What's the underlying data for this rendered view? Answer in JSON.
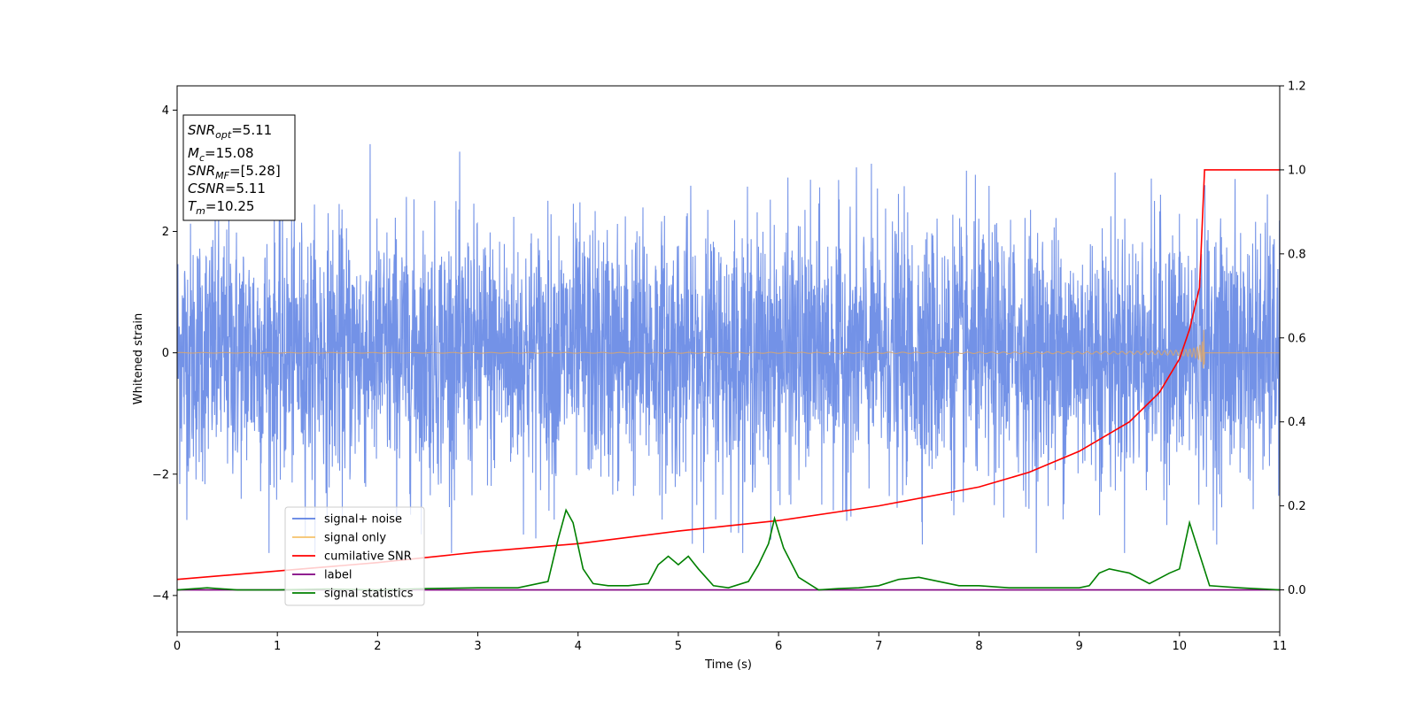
{
  "chart_data": {
    "type": "line",
    "xlabel": "Time (s)",
    "ylabel": "Whitened strain",
    "xlim": [
      0,
      11
    ],
    "ylim_left": [
      -4.6,
      4.4
    ],
    "ylim_right": [
      -0.1,
      1.2
    ],
    "xticks": [
      0,
      1,
      2,
      3,
      4,
      5,
      6,
      7,
      8,
      9,
      10,
      11
    ],
    "yticks_left": [
      -4,
      -2,
      0,
      2,
      4
    ],
    "yticks_right": [
      0.0,
      0.2,
      0.4,
      0.6,
      0.8,
      1.0,
      1.2
    ],
    "ytick_labels_right": [
      "0.0",
      "0.2",
      "0.4",
      "0.6",
      "0.8",
      "1.0",
      "1.2"
    ],
    "annotations": [
      {
        "base": "SNR",
        "sub": "opt",
        "value": "=5.11"
      },
      {
        "base": "M",
        "sub": "c",
        "value": "=15.08"
      },
      {
        "base": "SNR",
        "sub": "MF",
        "value": "=[5.28]"
      },
      {
        "base": "CSNR",
        "sub": "",
        "value": "=5.11"
      },
      {
        "base": "T",
        "sub": "m",
        "value": "=10.25"
      }
    ],
    "legend": {
      "placement": "lower-left",
      "entries": [
        {
          "label": "signal+ noise",
          "color": "#5b7fe3"
        },
        {
          "label": "signal only",
          "color": "#f5c36b"
        },
        {
          "label": "cumilative SNR",
          "color": "#ff0000"
        },
        {
          "label": "label",
          "color": "#800080"
        },
        {
          "label": "signal statistics",
          "color": "#008000"
        }
      ]
    },
    "series": [
      {
        "name": "signal+ noise",
        "axis": "left",
        "color": "#5b7fe3",
        "style": "noise",
        "amplitude_range": [
          -3.3,
          4.0
        ]
      },
      {
        "name": "signal only",
        "axis": "left",
        "color": "#d4a574",
        "style": "chirp",
        "merger_time": 10.25,
        "peak_amplitude": 0.85
      },
      {
        "name": "cumilative SNR",
        "axis": "right",
        "x": [
          0,
          1,
          2,
          3,
          4,
          5,
          6,
          7,
          8,
          8.5,
          9,
          9.5,
          9.8,
          10.0,
          10.1,
          10.2,
          10.25,
          11
        ],
        "y": [
          0.025,
          0.045,
          0.065,
          0.09,
          0.11,
          0.14,
          0.165,
          0.2,
          0.245,
          0.28,
          0.33,
          0.4,
          0.47,
          0.55,
          0.62,
          0.72,
          1.0,
          1.0
        ]
      },
      {
        "name": "label",
        "axis": "right",
        "x": [
          0,
          11
        ],
        "y": [
          0.0,
          0.0
        ]
      },
      {
        "name": "signal statistics",
        "axis": "right",
        "x": [
          0,
          0.3,
          0.6,
          1.0,
          1.5,
          2.0,
          2.5,
          3.0,
          3.4,
          3.7,
          3.8,
          3.88,
          3.95,
          4.05,
          4.15,
          4.3,
          4.5,
          4.7,
          4.8,
          4.9,
          5.0,
          5.1,
          5.2,
          5.35,
          5.5,
          5.7,
          5.8,
          5.9,
          5.96,
          6.05,
          6.2,
          6.4,
          6.6,
          6.8,
          7.0,
          7.2,
          7.4,
          7.6,
          7.8,
          8.0,
          8.3,
          8.6,
          9.0,
          9.1,
          9.2,
          9.3,
          9.5,
          9.7,
          9.9,
          10.0,
          10.1,
          10.3,
          10.6,
          11.0
        ],
        "y": [
          0.0,
          0.005,
          0.0,
          0.0,
          0.002,
          0.0,
          0.003,
          0.005,
          0.005,
          0.02,
          0.12,
          0.19,
          0.16,
          0.05,
          0.015,
          0.01,
          0.01,
          0.015,
          0.06,
          0.08,
          0.06,
          0.08,
          0.05,
          0.01,
          0.005,
          0.02,
          0.06,
          0.11,
          0.17,
          0.1,
          0.03,
          0.0,
          0.003,
          0.005,
          0.01,
          0.025,
          0.03,
          0.02,
          0.01,
          0.01,
          0.005,
          0.005,
          0.005,
          0.01,
          0.04,
          0.05,
          0.04,
          0.015,
          0.04,
          0.05,
          0.16,
          0.01,
          0.005,
          0.0
        ]
      }
    ]
  }
}
